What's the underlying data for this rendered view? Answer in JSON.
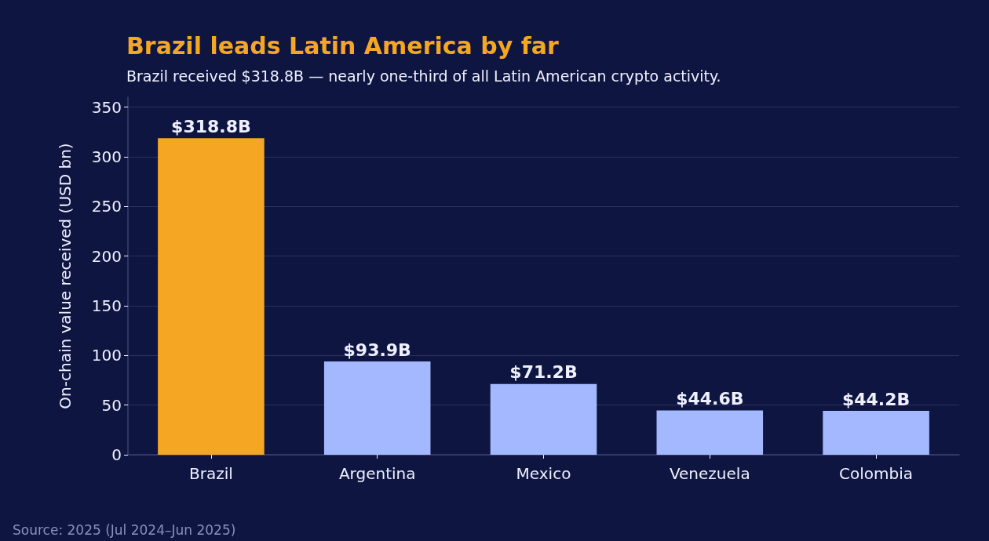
{
  "chart_data": {
    "type": "bar",
    "title": "Brazil leads Latin America by far",
    "subtitle": "Brazil received $318.8B — nearly one-third of all Latin American crypto activity.",
    "ylabel": "On-chain value received (USD bn)",
    "categories": [
      "Brazil",
      "Argentina",
      "Mexico",
      "Venezuela",
      "Colombia"
    ],
    "values": [
      318.8,
      93.9,
      71.2,
      44.6,
      44.2
    ],
    "colors": [
      "#f5a623",
      "#a3b8ff",
      "#a3b8ff",
      "#a3b8ff",
      "#a3b8ff"
    ],
    "value_labels": [
      "$318.8B",
      "$93.9B",
      "$71.2B",
      "$44.6B",
      "$44.2B"
    ],
    "ylim": [
      0,
      360
    ],
    "yticks": [
      0,
      50,
      100,
      150,
      200,
      250,
      300,
      350
    ],
    "grid": "y",
    "annotations": [
      "Source: 2025 (Jul 2024–Jun 2025)"
    ]
  }
}
